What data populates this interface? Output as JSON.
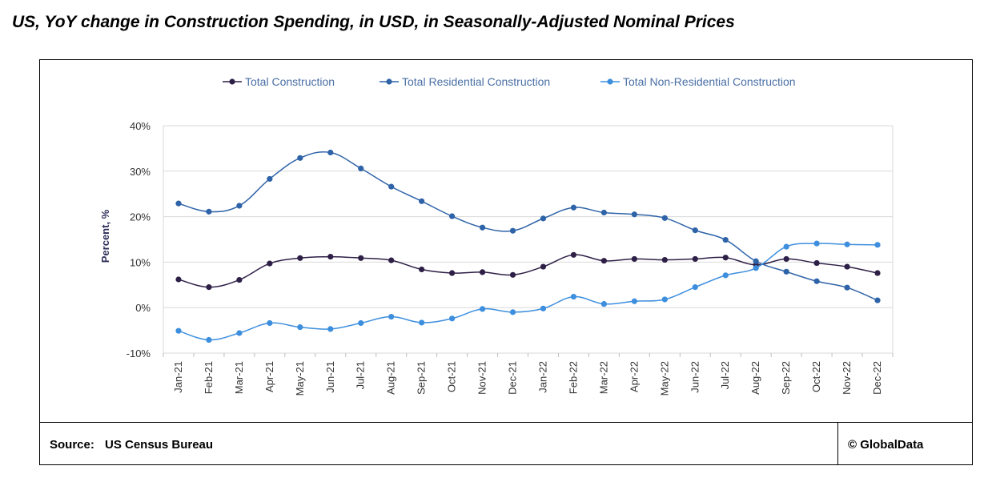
{
  "title": "US, YoY change in Construction Spending, in USD, in Seasonally-Adjusted Nominal Prices",
  "footer": {
    "source_label": "Source:",
    "source_value": "US Census Bureau",
    "copyright": "© GlobalData"
  },
  "chart_data": {
    "type": "line",
    "title": "US, YoY change in Construction Spending, in USD, in Seasonally-Adjusted Nominal Prices",
    "xlabel": "",
    "ylabel": "Percent, %",
    "ylim": [
      -10,
      40
    ],
    "yticks": [
      -10,
      0,
      10,
      20,
      30,
      40
    ],
    "ytick_labels": [
      "-10%",
      "0%",
      "10%",
      "20%",
      "30%",
      "40%"
    ],
    "grid": "horizontal",
    "legend_position": "top",
    "categories": [
      "Jan-21",
      "Feb-21",
      "Mar-21",
      "Apr-21",
      "May-21",
      "Jun-21",
      "Jul-21",
      "Aug-21",
      "Sep-21",
      "Oct-21",
      "Nov-21",
      "Dec-21",
      "Jan-22",
      "Feb-22",
      "Mar-22",
      "Apr-22",
      "May-22",
      "Jun-22",
      "Jul-22",
      "Aug-22",
      "Sep-22",
      "Oct-22",
      "Nov-22",
      "Dec-22"
    ],
    "series": [
      {
        "name": "Total Construction",
        "color": "#2e1f47",
        "values": [
          6.2,
          4.5,
          6.1,
          9.7,
          10.9,
          11.2,
          10.9,
          10.4,
          8.4,
          7.6,
          7.8,
          7.2,
          9.0,
          11.6,
          10.3,
          10.7,
          10.5,
          10.7,
          11.0,
          9.4,
          10.7,
          9.8,
          9.0,
          7.6
        ]
      },
      {
        "name": "Total Residential Construction",
        "color": "#2e63a8",
        "values": [
          22.9,
          21.1,
          22.4,
          28.3,
          32.9,
          34.1,
          30.6,
          26.6,
          23.4,
          20.1,
          17.6,
          16.9,
          19.6,
          22.0,
          20.9,
          20.5,
          19.7,
          17.0,
          14.9,
          10.2,
          7.9,
          5.8,
          4.4,
          1.6
        ]
      },
      {
        "name": "Total Non-Residential Construction",
        "color": "#3d8fde",
        "values": [
          -5.1,
          -7.1,
          -5.6,
          -3.4,
          -4.3,
          -4.7,
          -3.4,
          -2.0,
          -3.3,
          -2.4,
          -0.3,
          -1.0,
          -0.2,
          2.4,
          0.8,
          1.4,
          1.8,
          4.5,
          7.1,
          8.7,
          13.4,
          14.1,
          13.9,
          13.8
        ]
      }
    ]
  }
}
